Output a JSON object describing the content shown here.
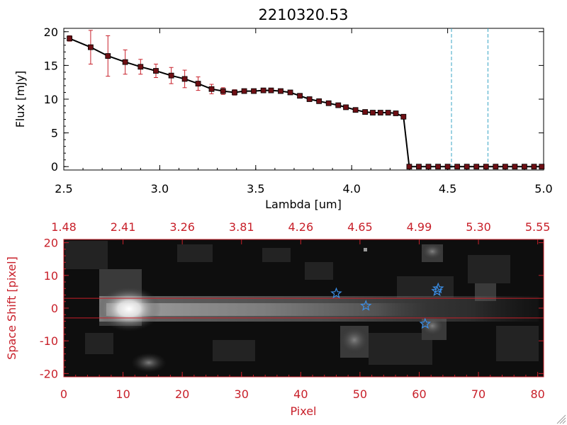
{
  "chart_data": [
    {
      "type": "line",
      "title": "2210320.53",
      "xlabel": "Lambda [um]",
      "ylabel": "Flux [mJy]",
      "xlim": [
        2.5,
        5.0
      ],
      "ylim": [
        -0.5,
        20.5
      ],
      "xticks": [
        "2.5",
        "3.0",
        "3.5",
        "4.0",
        "4.5",
        "5.0"
      ],
      "yticks": [
        "0",
        "5",
        "10",
        "15",
        "20"
      ],
      "colors": {
        "line": "#000000",
        "marker": "#6e0f14",
        "error": "#c8202a",
        "dashed": "#3aa6c6",
        "zero_line": "#c8202a"
      },
      "vlines": [
        4.52,
        4.71
      ],
      "series": [
        {
          "x": [
            2.53,
            2.64,
            2.73,
            2.82,
            2.9,
            2.98,
            3.06,
            3.13,
            3.2,
            3.27,
            3.33,
            3.39,
            3.44,
            3.49,
            3.54,
            3.58,
            3.63,
            3.68,
            3.73,
            3.78,
            3.83,
            3.88,
            3.93,
            3.97,
            4.02,
            4.07,
            4.11,
            4.15,
            4.19,
            4.23,
            4.27,
            4.3,
            4.35,
            4.4,
            4.45,
            4.5,
            4.55,
            4.6,
            4.65,
            4.7,
            4.75,
            4.8,
            4.85,
            4.9,
            4.95,
            4.99
          ],
          "y": [
            19.0,
            17.7,
            16.4,
            15.5,
            14.8,
            14.2,
            13.5,
            13.0,
            12.3,
            11.5,
            11.2,
            11.0,
            11.2,
            11.2,
            11.3,
            11.3,
            11.2,
            11.0,
            10.5,
            10.0,
            9.7,
            9.4,
            9.1,
            8.8,
            8.4,
            8.1,
            8.0,
            8.0,
            8.0,
            7.9,
            7.4,
            0.0,
            0.0,
            0.0,
            0.0,
            0.0,
            0.0,
            0.0,
            0.0,
            0.0,
            0.0,
            0.0,
            0.0,
            0.0,
            0.0,
            0.0
          ],
          "yerr": [
            0.4,
            2.5,
            3.0,
            1.8,
            1.1,
            1.0,
            1.2,
            1.3,
            1.0,
            0.7,
            0.5,
            0.4,
            0.3,
            0.3,
            0.3,
            0.3,
            0.3,
            0.3,
            0.3,
            0.3,
            0.3,
            0.3,
            0.3,
            0.3,
            0.3,
            0.3,
            0.3,
            0.3,
            0.3,
            0.3,
            0.3,
            0.0,
            0.0,
            0.0,
            0.0,
            0.0,
            0.0,
            0.0,
            0.0,
            0.0,
            0.0,
            0.0,
            0.0,
            0.0,
            0.0,
            0.0
          ]
        }
      ]
    },
    {
      "type": "heatmap",
      "xlabel": "Pixel",
      "ylabel": "Space Shift [pixel]",
      "xlim": [
        0,
        81
      ],
      "ylim": [
        -21,
        21
      ],
      "xticks": [
        "0",
        "10",
        "20",
        "30",
        "40",
        "50",
        "60",
        "70",
        "80"
      ],
      "yticks": [
        "-20",
        "-10",
        "0",
        "10",
        "20"
      ],
      "top_ticks": [
        "1.48",
        "2.41",
        "3.26",
        "3.81",
        "4.26",
        "4.65",
        "4.99",
        "5.30",
        "5.55"
      ],
      "colors": {
        "axis": "#c8202a",
        "star": "#3b8fe8",
        "hline": "#c8202a"
      },
      "hlines": [
        3,
        -3
      ],
      "stars": [
        {
          "x": 46,
          "y": 4.5
        },
        {
          "x": 51,
          "y": 0.7
        },
        {
          "x": 61,
          "y": -4.8
        },
        {
          "x": 63,
          "y": 5.2
        },
        {
          "x": 63.2,
          "y": 6.0
        }
      ]
    }
  ]
}
